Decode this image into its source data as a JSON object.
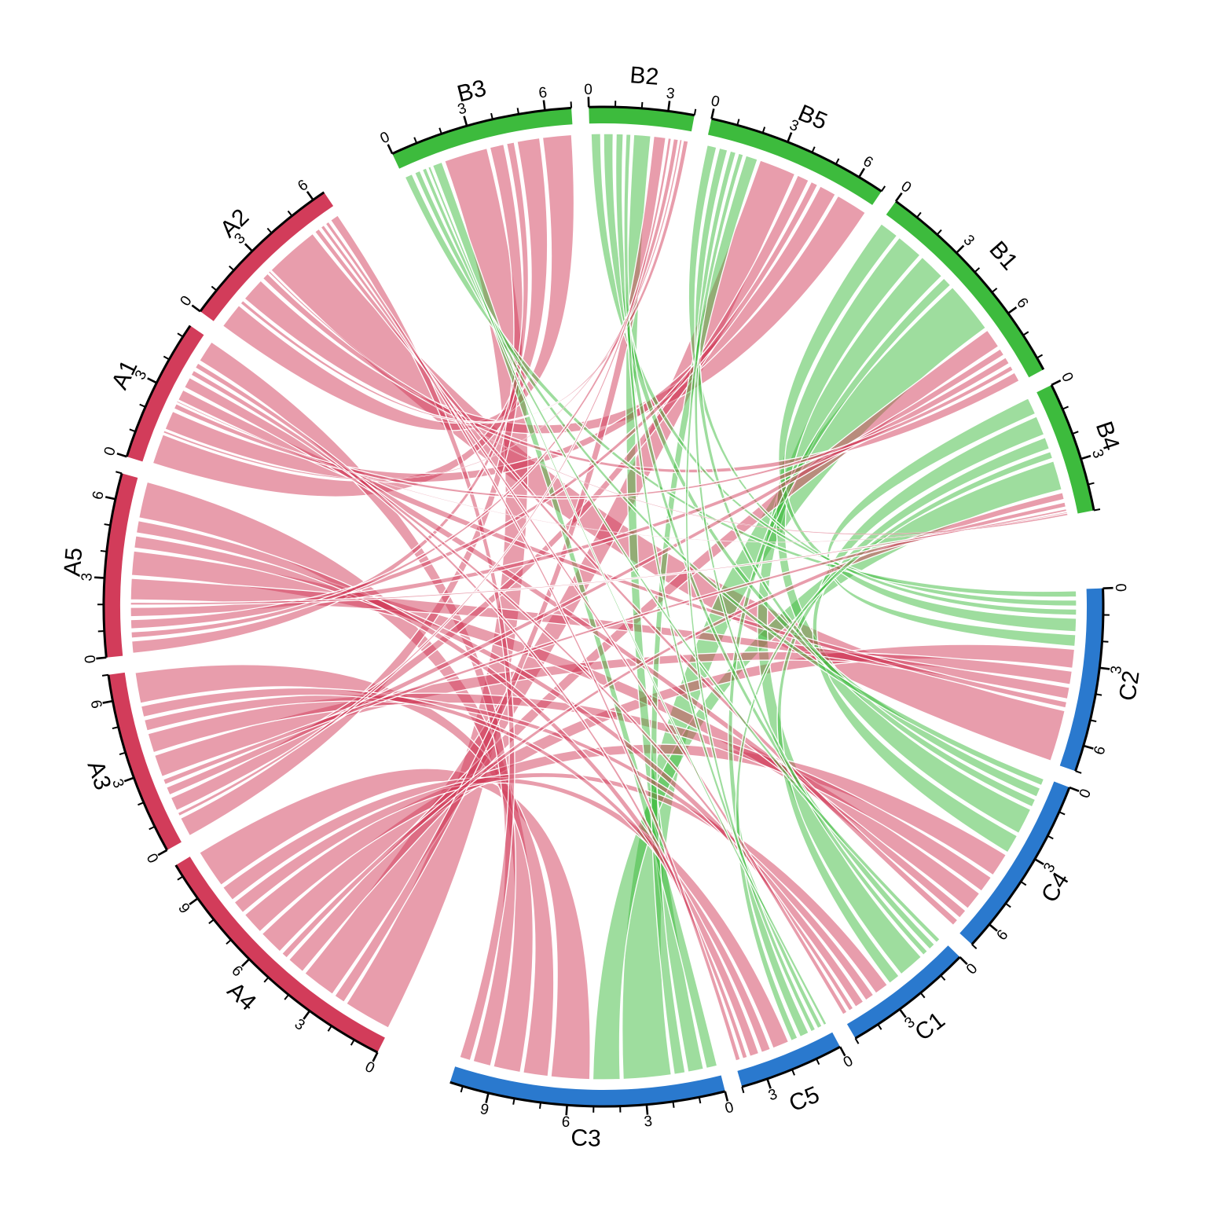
{
  "figure": {
    "background": "#FFFFFF",
    "title": ""
  },
  "chart_data": {
    "type": "chord",
    "title": "",
    "groups": [
      {
        "name": "A",
        "color": "#D23C5A",
        "sectors": [
          "A1",
          "A2",
          "A3",
          "A4",
          "A5"
        ]
      },
      {
        "name": "B",
        "color": "#3DBB3D",
        "sectors": [
          "B1",
          "B2",
          "B3",
          "B4",
          "B5"
        ]
      },
      {
        "name": "C",
        "color": "#2A79CE",
        "sectors": [
          "C1",
          "C2",
          "C3",
          "C4",
          "C5"
        ]
      }
    ],
    "sector_axis_max": {
      "A1": 5.5,
      "A2": 6.5,
      "A3": 7,
      "A4": 10.5,
      "A5": 7,
      "B1": 8.5,
      "B2": 4,
      "B3": 7,
      "B4": 5,
      "B5": 7,
      "C1": 5,
      "C2": 7,
      "C3": 10.5,
      "C4": 7,
      "C5": 4
    },
    "order_clockwise": [
      "B3",
      "B2",
      "B5",
      "B1",
      "B4",
      "C2",
      "C4",
      "C1",
      "C5",
      "C3",
      "A4",
      "A3",
      "A5",
      "A1",
      "A2"
    ],
    "big_gap_after": [
      "B4",
      "C3",
      "A2"
    ],
    "layout": {
      "start_bearing_deg": -25,
      "small_gap_deg": 2,
      "group_gap_deg": 9,
      "tick_unit": 1,
      "tick_label_every": 3,
      "ribbon_opacity": 0.5,
      "ribbon_color_rule": "links from group A are pink (A color), links from group B are green (B color); no within-group links"
    },
    "links": [
      {
        "source_group": "A",
        "target_group": "B",
        "rows": [
          "A1",
          "A2",
          "A3",
          "A4",
          "A5"
        ],
        "cols": [
          "B1",
          "B2",
          "B3",
          "B4",
          "B5"
        ],
        "values": [
          [
            0.3,
            0.1,
            1.2,
            0.05,
            0.8
          ],
          [
            0.5,
            0.3,
            1.5,
            0.1,
            1.4
          ],
          [
            0.4,
            0.2,
            0.8,
            0.3,
            0.6
          ],
          [
            0.9,
            0.6,
            2.2,
            0.4,
            1.6
          ],
          [
            0.4,
            0.3,
            0.5,
            0.15,
            0.4
          ]
        ]
      },
      {
        "source_group": "A",
        "target_group": "C",
        "rows": [
          "A1",
          "A2",
          "A3",
          "A4",
          "A5"
        ],
        "cols": [
          "C1",
          "C2",
          "C3",
          "C4",
          "C5"
        ],
        "values": [
          [
            0.3,
            0.5,
            0.9,
            0.5,
            0.3
          ],
          [
            0.3,
            3.0,
            0.6,
            0.4,
            0.3
          ],
          [
            0.5,
            0.9,
            1.2,
            0.8,
            0.5
          ],
          [
            0.7,
            1.2,
            1.8,
            1.1,
            0.8
          ],
          [
            0.5,
            0.8,
            1.3,
            0.9,
            0.5
          ]
        ]
      },
      {
        "source_group": "B",
        "target_group": "C",
        "rows": [
          "B1",
          "B2",
          "B3",
          "B4",
          "B5"
        ],
        "cols": [
          "C1",
          "C2",
          "C3",
          "C4",
          "C5"
        ],
        "values": [
          [
            1.2,
            0.9,
            2.2,
            1.2,
            0.5
          ],
          [
            0.4,
            0.5,
            0.8,
            0.5,
            0.3
          ],
          [
            0.3,
            0.5,
            0.6,
            0.4,
            0.2
          ],
          [
            0.6,
            0.8,
            1.3,
            0.9,
            0.4
          ],
          [
            0.35,
            0.5,
            0.6,
            0.45,
            0.3
          ]
        ]
      }
    ]
  }
}
